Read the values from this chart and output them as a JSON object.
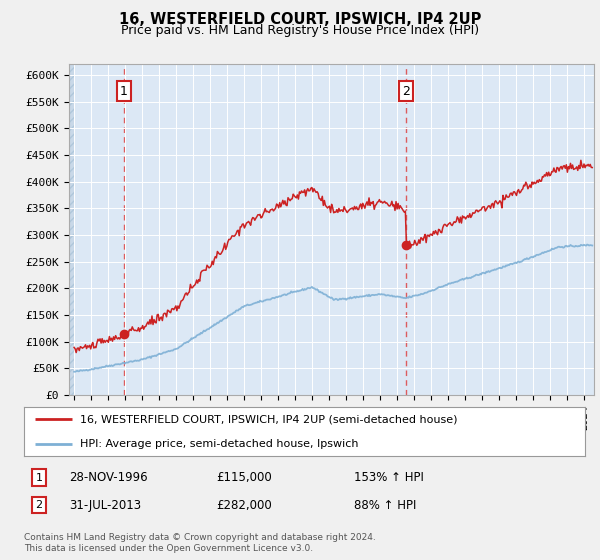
{
  "title": "16, WESTERFIELD COURT, IPSWICH, IP4 2UP",
  "subtitle": "Price paid vs. HM Land Registry's House Price Index (HPI)",
  "legend_line1": "16, WESTERFIELD COURT, IPSWICH, IP4 2UP (semi-detached house)",
  "legend_line2": "HPI: Average price, semi-detached house, Ipswich",
  "footnote": "Contains HM Land Registry data © Crown copyright and database right 2024.\nThis data is licensed under the Open Government Licence v3.0.",
  "sale1_date": "28-NOV-1996",
  "sale1_price": 115000,
  "sale1_label": "153% ↑ HPI",
  "sale2_date": "31-JUL-2013",
  "sale2_price": 282000,
  "sale2_label": "88% ↑ HPI",
  "ylim": [
    0,
    620000
  ],
  "yticks": [
    0,
    50000,
    100000,
    150000,
    200000,
    250000,
    300000,
    350000,
    400000,
    450000,
    500000,
    550000,
    600000
  ],
  "ytick_labels": [
    "£0",
    "£50K",
    "£100K",
    "£150K",
    "£200K",
    "£250K",
    "£300K",
    "£350K",
    "£400K",
    "£450K",
    "£500K",
    "£550K",
    "£600K"
  ],
  "hpi_color": "#7eb0d5",
  "price_color": "#cc2222",
  "vline_color": "#dd4444",
  "dot_color": "#cc2222",
  "background_color": "#f0f0f0",
  "plot_bg_color": "#dce8f5",
  "hatch_color": "#c8d8e8"
}
